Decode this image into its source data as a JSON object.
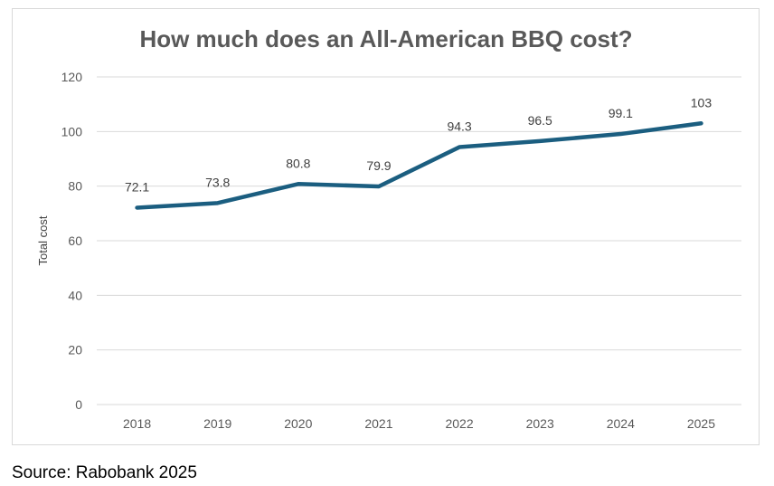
{
  "chart_data": {
    "type": "line",
    "title": "How much does an All-American BBQ cost?",
    "xlabel": "",
    "ylabel": "Total cost",
    "categories": [
      "2018",
      "2019",
      "2020",
      "2021",
      "2022",
      "2023",
      "2024",
      "2025"
    ],
    "series": [
      {
        "values": [
          72.1,
          73.8,
          80.8,
          79.9,
          94.3,
          96.5,
          99.1,
          103
        ],
        "labels": [
          "72.1",
          "73.8",
          "80.8",
          "79.9",
          "94.3",
          "96.5",
          "99.1",
          "103"
        ],
        "color": "#1b5e80"
      }
    ],
    "ylim": [
      0,
      120
    ],
    "yticks": [
      "0",
      "20",
      "40",
      "60",
      "80",
      "100",
      "120"
    ],
    "grid": true,
    "legend": "none"
  },
  "source": "Source: Rabobank 2025"
}
